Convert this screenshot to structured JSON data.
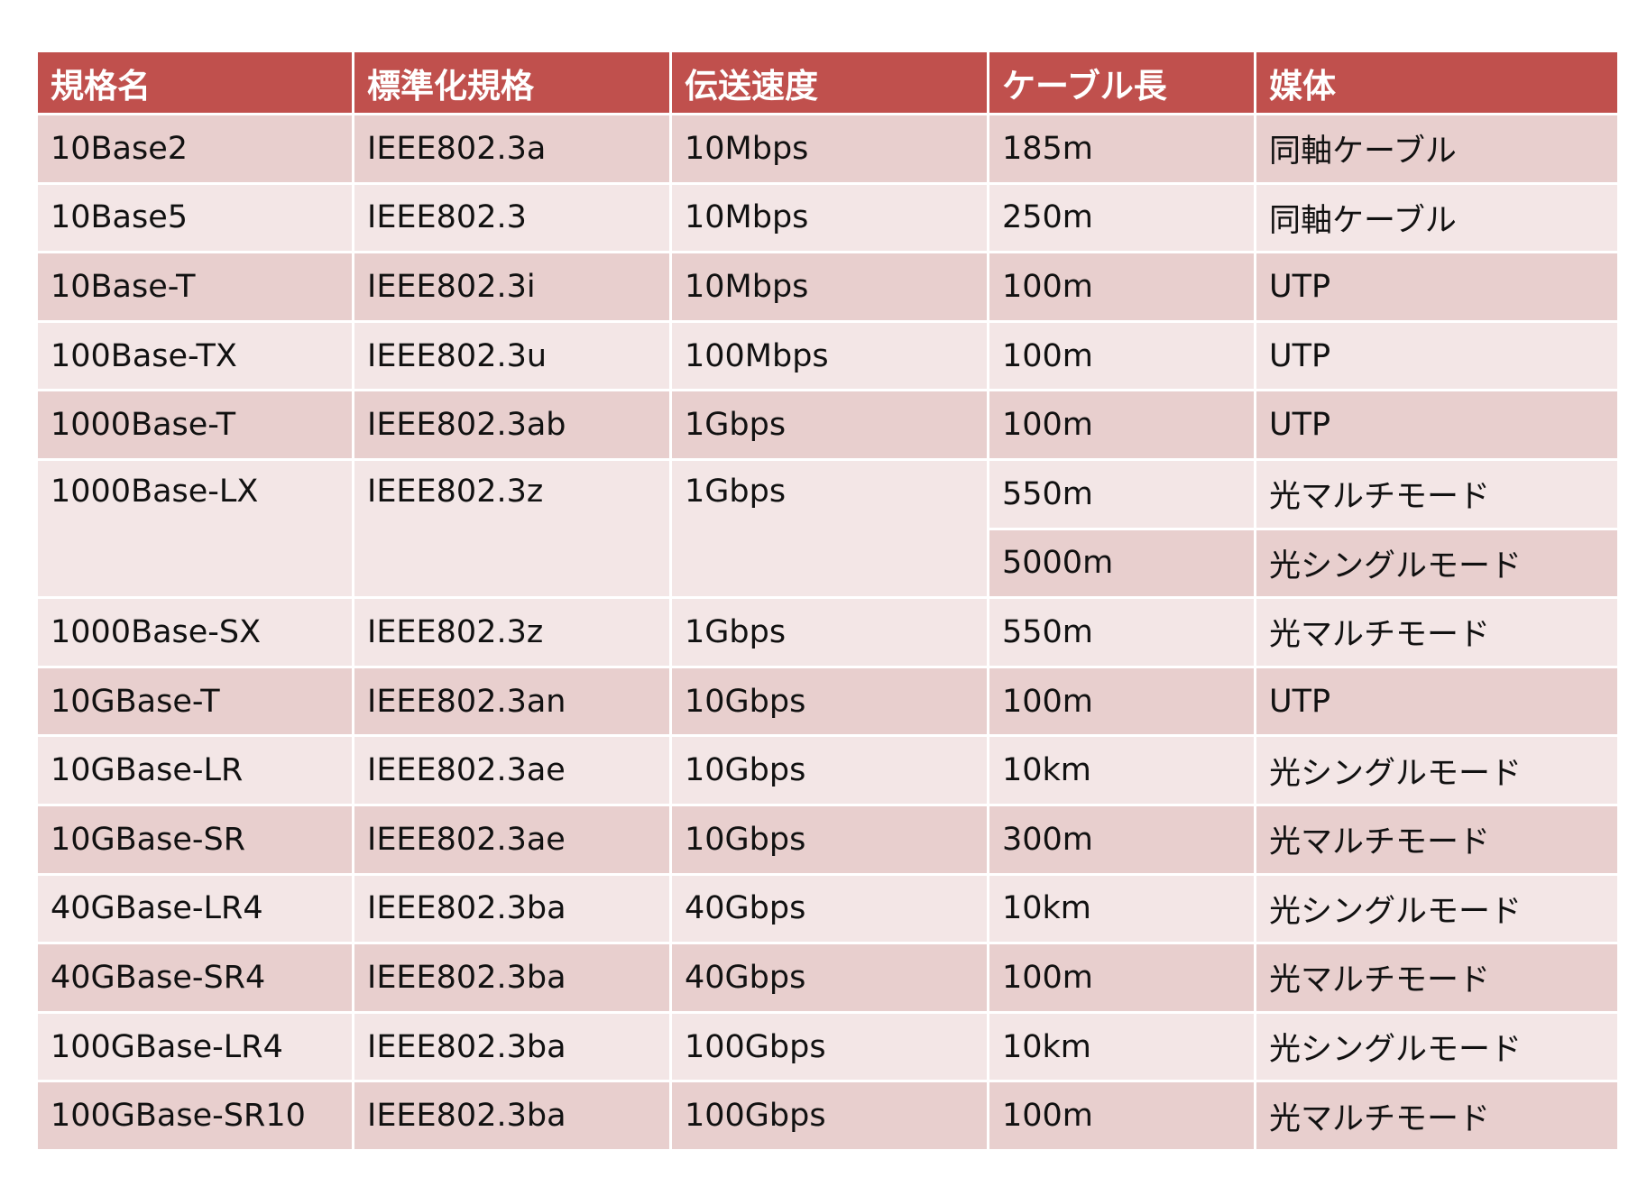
{
  "headers": [
    "規格名",
    "標準化規格",
    "伝送速度",
    "ケーブル長",
    "媒体"
  ],
  "rows": [
    {
      "name": "10Base2",
      "standard": "IEEE802.3a",
      "speed": "10Mbps",
      "cable_length": "185m",
      "medium": "同軸ケーブル"
    },
    {
      "name": "10Base5",
      "standard": "IEEE802.3",
      "speed": "10Mbps",
      "cable_length": "250m",
      "medium": "同軸ケーブル"
    },
    {
      "name": "10Base-T",
      "standard": "IEEE802.3i",
      "speed": "10Mbps",
      "cable_length": "100m",
      "medium": "UTP"
    },
    {
      "name": "100Base-TX",
      "standard": "IEEE802.3u",
      "speed": "100Mbps",
      "cable_length": "100m",
      "medium": "UTP"
    },
    {
      "name": "1000Base-T",
      "standard": "IEEE802.3ab",
      "speed": "1Gbps",
      "cable_length": "100m",
      "medium": "UTP"
    },
    {
      "name": "1000Base-LX",
      "standard": "IEEE802.3z",
      "speed": "1Gbps",
      "cable_length": "550m",
      "medium": "光マルチモード"
    },
    {
      "cable_length": "5000m",
      "medium": "光シングルモード"
    },
    {
      "name": "1000Base-SX",
      "standard": "IEEE802.3z",
      "speed": "1Gbps",
      "cable_length": "550m",
      "medium": "光マルチモード"
    },
    {
      "name": "10GBase-T",
      "standard": "IEEE802.3an",
      "speed": "10Gbps",
      "cable_length": "100m",
      "medium": "UTP"
    },
    {
      "name": "10GBase-LR",
      "standard": "IEEE802.3ae",
      "speed": "10Gbps",
      "cable_length": "10km",
      "medium": "光シングルモード"
    },
    {
      "name": "10GBase-SR",
      "standard": "IEEE802.3ae",
      "speed": "10Gbps",
      "cable_length": "300m",
      "medium": "光マルチモード"
    },
    {
      "name": "40GBase-LR4",
      "standard": "IEEE802.3ba",
      "speed": "40Gbps",
      "cable_length": "10km",
      "medium": "光シングルモード"
    },
    {
      "name": "40GBase-SR4",
      "standard": "IEEE802.3ba",
      "speed": "40Gbps",
      "cable_length": "100m",
      "medium": "光マルチモード"
    },
    {
      "name": "100GBase-LR4",
      "standard": "IEEE802.3ba",
      "speed": "100Gbps",
      "cable_length": "10km",
      "medium": "光シングルモード"
    },
    {
      "name": "100GBase-SR10",
      "standard": "IEEE802.3ba",
      "speed": "100Gbps",
      "cable_length": "100m",
      "medium": "光マルチモード"
    }
  ]
}
